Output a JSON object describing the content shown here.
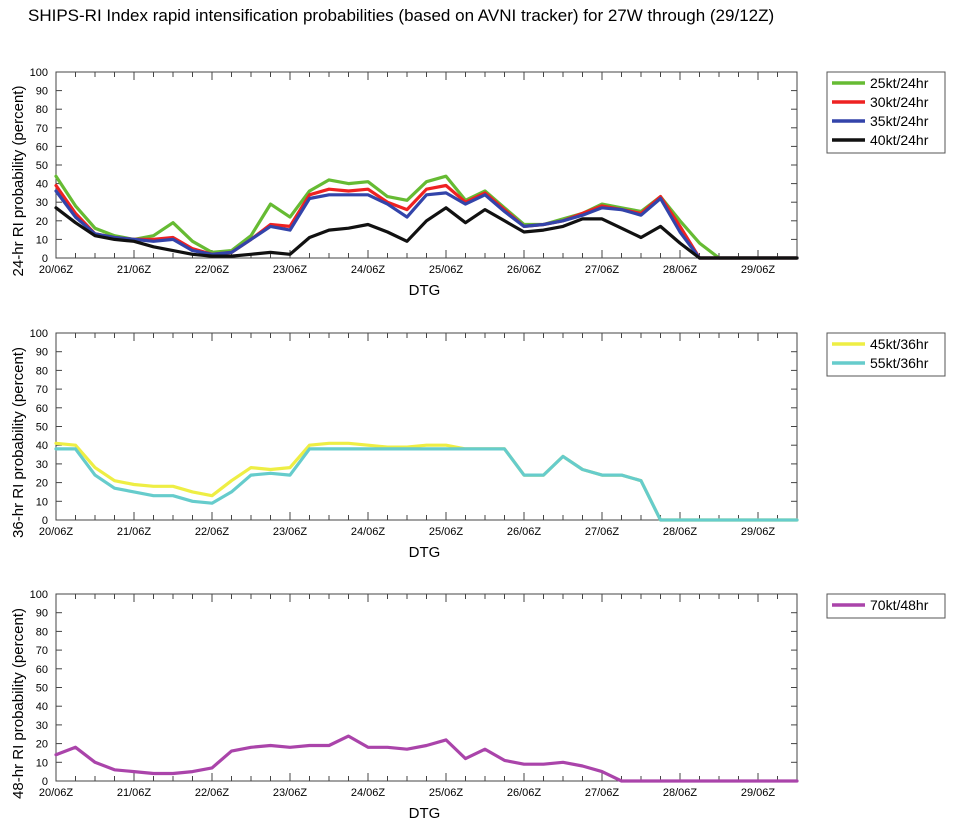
{
  "title": "SHIPS-RI Index rapid intensification probabilities (based on AVNI tracker) for 27W through (29/12Z)",
  "chart_data": [
    {
      "type": "line",
      "ylabel": "24-hr RI probability (percent)",
      "xlabel": "DTG",
      "ylim": [
        0,
        100
      ],
      "yticks": [
        "0",
        "10",
        "20",
        "30",
        "40",
        "50",
        "60",
        "70",
        "80",
        "90",
        "100"
      ],
      "xtick_labels": [
        "20/06Z",
        "21/06Z",
        "22/06Z",
        "23/06Z",
        "24/06Z",
        "25/06Z",
        "26/06Z",
        "27/06Z",
        "28/06Z",
        "29/06Z"
      ],
      "x_interval_hours": 6,
      "legend_position": "top-right",
      "series": [
        {
          "name": "25kt/24hr",
          "color": "#66bb33",
          "values": [
            44,
            28,
            16,
            12,
            10,
            12,
            19,
            9,
            3,
            4,
            12,
            29,
            22,
            36,
            42,
            40,
            41,
            33,
            31,
            41,
            44,
            31,
            36,
            27,
            18,
            18,
            21,
            24,
            29,
            27,
            25,
            33,
            20,
            8,
            0,
            0,
            0,
            0,
            0
          ]
        },
        {
          "name": "30kt/24hr",
          "color": "#ee2222",
          "values": [
            39,
            24,
            13,
            11,
            10,
            10,
            11,
            5,
            2,
            3,
            10,
            18,
            17,
            34,
            37,
            36,
            37,
            30,
            26,
            37,
            39,
            30,
            35,
            26,
            17,
            18,
            20,
            24,
            28,
            26,
            24,
            33,
            17,
            0,
            0,
            0,
            0,
            0,
            0
          ]
        },
        {
          "name": "35kt/24hr",
          "color": "#3344aa",
          "values": [
            36,
            22,
            13,
            11,
            10,
            9,
            10,
            4,
            2,
            3,
            10,
            17,
            15,
            32,
            34,
            34,
            34,
            29,
            22,
            34,
            35,
            29,
            34,
            25,
            17,
            18,
            20,
            23,
            27,
            26,
            23,
            32,
            14,
            0,
            0,
            0,
            0,
            0,
            0
          ]
        },
        {
          "name": "40kt/24hr",
          "color": "#111111",
          "values": [
            27,
            19,
            12,
            10,
            9,
            6,
            4,
            2,
            1,
            1,
            2,
            3,
            2,
            11,
            15,
            16,
            18,
            14,
            9,
            20,
            27,
            19,
            26,
            20,
            14,
            15,
            17,
            21,
            21,
            16,
            11,
            17,
            8,
            0,
            0,
            0,
            0,
            0,
            0
          ]
        }
      ]
    },
    {
      "type": "line",
      "ylabel": "36-hr RI probability (percent)",
      "xlabel": "DTG",
      "ylim": [
        0,
        100
      ],
      "yticks": [
        "0",
        "10",
        "20",
        "30",
        "40",
        "50",
        "60",
        "70",
        "80",
        "90",
        "100"
      ],
      "xtick_labels": [
        "20/06Z",
        "21/06Z",
        "22/06Z",
        "23/06Z",
        "24/06Z",
        "25/06Z",
        "26/06Z",
        "27/06Z",
        "28/06Z",
        "29/06Z"
      ],
      "x_interval_hours": 6,
      "legend_position": "top-right",
      "series": [
        {
          "name": "45kt/36hr",
          "color": "#eeee44",
          "values": [
            41,
            40,
            28,
            21,
            19,
            18,
            18,
            15,
            13,
            21,
            28,
            27,
            28,
            40,
            41,
            41,
            40,
            39,
            39,
            40,
            40,
            38,
            38,
            38,
            24,
            24,
            34,
            27,
            24,
            24,
            21,
            0,
            0,
            0,
            0,
            0,
            0,
            0,
            0
          ]
        },
        {
          "name": "55kt/36hr",
          "color": "#66cccc",
          "values": [
            38,
            38,
            24,
            17,
            15,
            13,
            13,
            10,
            9,
            15,
            24,
            25,
            24,
            38,
            38,
            38,
            38,
            38,
            38,
            38,
            38,
            38,
            38,
            38,
            24,
            24,
            34,
            27,
            24,
            24,
            21,
            0,
            0,
            0,
            0,
            0,
            0,
            0,
            0
          ]
        }
      ]
    },
    {
      "type": "line",
      "ylabel": "48-hr RI probability (percent)",
      "xlabel": "DTG",
      "ylim": [
        0,
        100
      ],
      "yticks": [
        "0",
        "10",
        "20",
        "30",
        "40",
        "50",
        "60",
        "70",
        "80",
        "90",
        "100"
      ],
      "xtick_labels": [
        "20/06Z",
        "21/06Z",
        "22/06Z",
        "23/06Z",
        "24/06Z",
        "25/06Z",
        "26/06Z",
        "27/06Z",
        "28/06Z",
        "29/06Z"
      ],
      "x_interval_hours": 6,
      "legend_position": "top-right",
      "series": [
        {
          "name": "70kt/48hr",
          "color": "#aa44aa",
          "values": [
            14,
            18,
            10,
            6,
            5,
            4,
            4,
            5,
            7,
            16,
            18,
            19,
            18,
            19,
            19,
            24,
            18,
            18,
            17,
            19,
            22,
            12,
            17,
            11,
            9,
            9,
            10,
            8,
            5,
            0,
            0,
            0,
            0,
            0,
            0,
            0,
            0,
            0,
            0
          ]
        }
      ]
    }
  ]
}
